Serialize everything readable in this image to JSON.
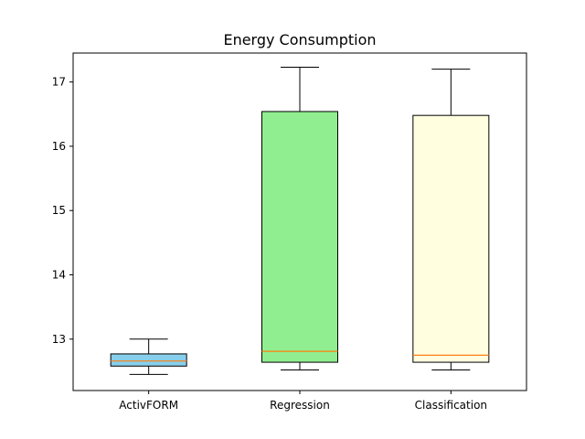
{
  "chart_data": {
    "type": "box",
    "title": "Energy Consumption",
    "xlabel": "",
    "ylabel": "",
    "ylim": [
      12.2,
      17.45
    ],
    "yticks": [
      13,
      14,
      15,
      16,
      17
    ],
    "grid": false,
    "categories": [
      "ActivFORM",
      "Regression",
      "Classification"
    ],
    "boxes": [
      {
        "whisker_low": 12.45,
        "q1": 12.58,
        "median": 12.66,
        "q3": 12.77,
        "whisker_high": 13.0,
        "fill": "#87ceeb"
      },
      {
        "whisker_low": 12.52,
        "q1": 12.64,
        "median": 12.81,
        "q3": 16.54,
        "whisker_high": 17.23,
        "fill": "#90ee90"
      },
      {
        "whisker_low": 12.52,
        "q1": 12.64,
        "median": 12.75,
        "q3": 16.48,
        "whisker_high": 17.2,
        "fill": "#ffffe0"
      }
    ],
    "median_color": "#ff7f0e"
  }
}
